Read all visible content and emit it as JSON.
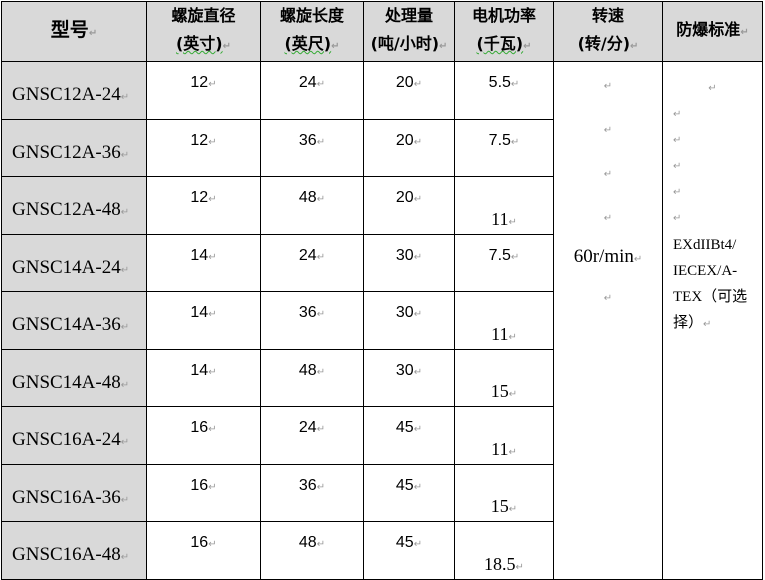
{
  "headers": {
    "model": "型号",
    "diameter": [
      "螺旋直径",
      "(英寸)"
    ],
    "length": [
      "螺旋长度",
      "(英尺)"
    ],
    "capacity": [
      "处理量",
      "(吨/小时)"
    ],
    "power": [
      "电机功率",
      "(千瓦)"
    ],
    "speed": [
      "转速",
      "(转/分)"
    ],
    "standard": "防爆标准"
  },
  "rows": [
    {
      "model": "GNSC12A-24",
      "diameter": "12",
      "length": "24",
      "capacity": "20",
      "power": "5.5"
    },
    {
      "model": "GNSC12A-36",
      "diameter": "12",
      "length": "36",
      "capacity": "20",
      "power": "7.5"
    },
    {
      "model": "GNSC12A-48",
      "diameter": "12",
      "length": "48",
      "capacity": "20",
      "power": "11"
    },
    {
      "model": "GNSC14A-24",
      "diameter": "14",
      "length": "24",
      "capacity": "30",
      "power": "7.5"
    },
    {
      "model": "GNSC14A-36",
      "diameter": "14",
      "length": "36",
      "capacity": "30",
      "power": "11"
    },
    {
      "model": "GNSC14A-48",
      "diameter": "14",
      "length": "48",
      "capacity": "30",
      "power": "15"
    },
    {
      "model": "GNSC16A-24",
      "diameter": "16",
      "length": "24",
      "capacity": "45",
      "power": "11"
    },
    {
      "model": "GNSC16A-36",
      "diameter": "16",
      "length": "36",
      "capacity": "45",
      "power": "15"
    },
    {
      "model": "GNSC16A-48",
      "diameter": "16",
      "length": "48",
      "capacity": "45",
      "power": "18.5"
    }
  ],
  "speed_value": "60r/min",
  "standard_value": [
    "EXdIIBt4/",
    "IECEX/A-",
    "TEX（可选",
    "择）"
  ]
}
